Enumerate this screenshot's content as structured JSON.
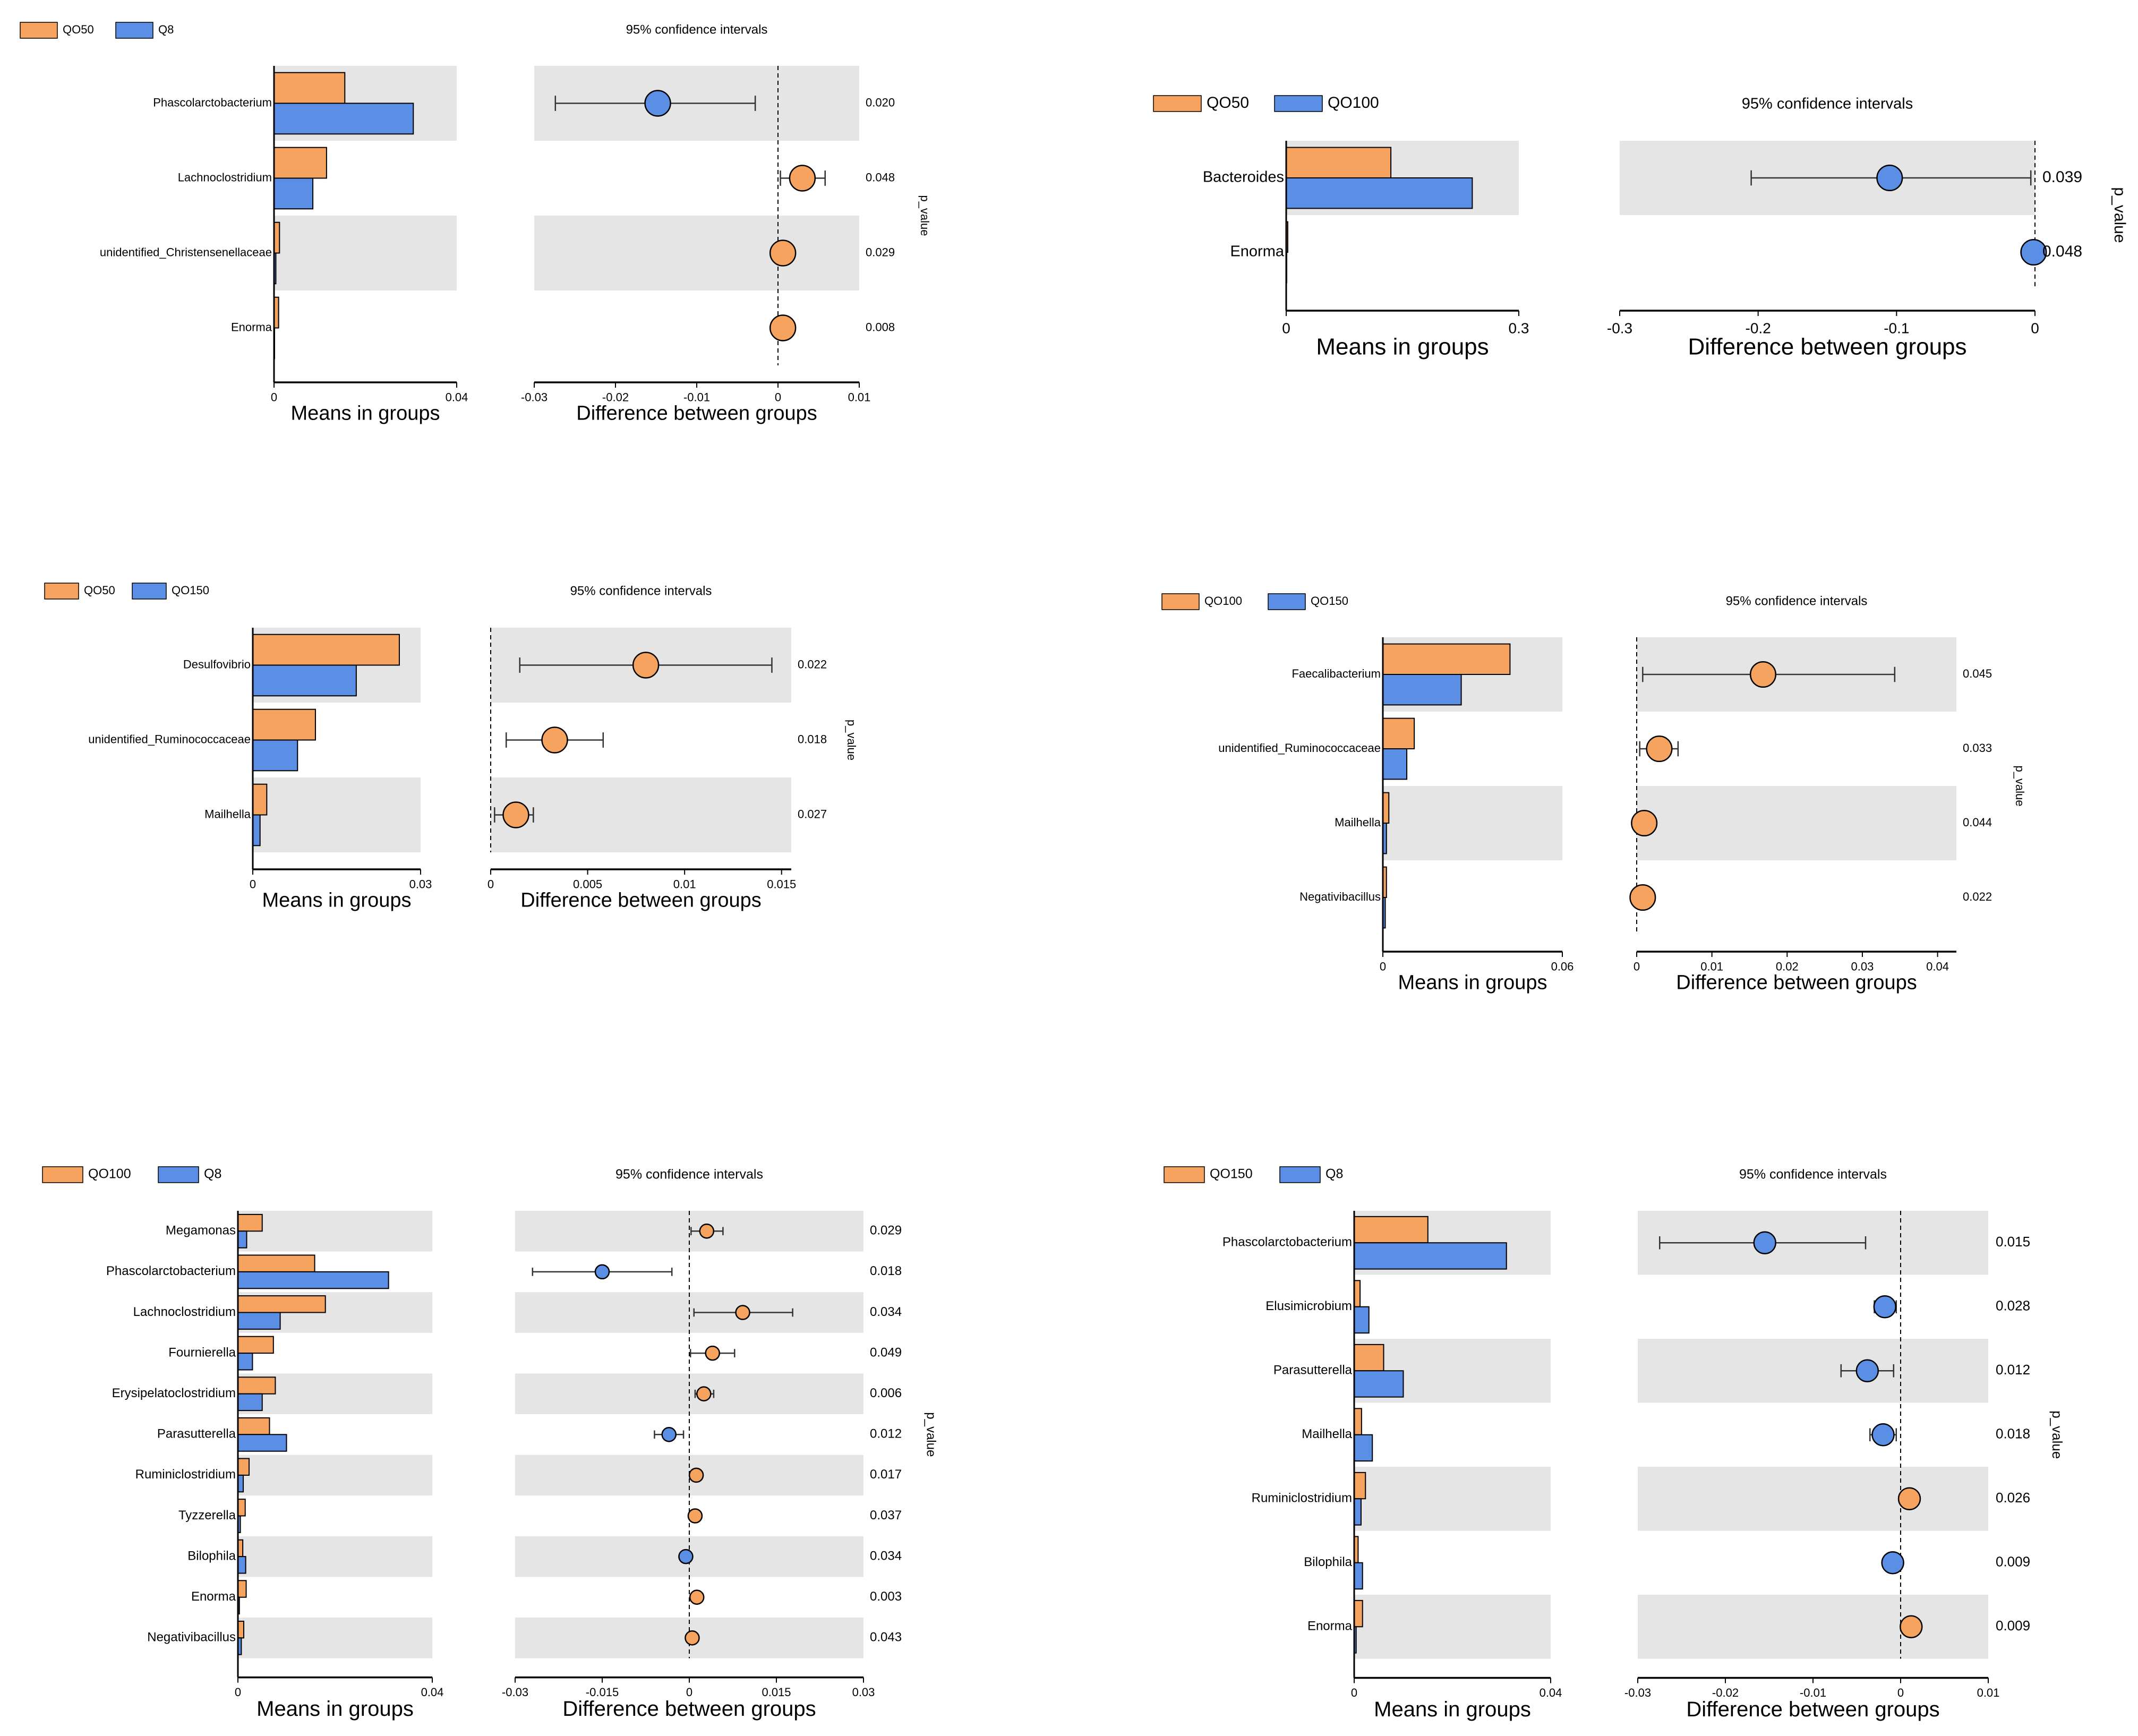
{
  "colors": {
    "group_a": "#f5a35e",
    "group_b": "#5b8fe6",
    "shade": "#e5e5e5",
    "axis": "#000000",
    "errbar": "#333333"
  },
  "chart_data": [
    {
      "type": "extended_error_bar",
      "legend": [
        "QO50",
        "Q8"
      ],
      "ci_title": "95% confidence intervals",
      "xlabel_left": "Means in groups",
      "xlabel_right": "Difference between groups",
      "pvalue_label": "p_value",
      "left_ticks": [
        "0",
        "0.04"
      ],
      "right_ticks": [
        "-0.03",
        "-0.02",
        "-0.01",
        "0",
        "0.01"
      ],
      "mean_xlim": [
        0,
        0.04
      ],
      "diff_xlim": [
        -0.03,
        0.01
      ],
      "rows": [
        {
          "label": "Phascolarctobacterium",
          "mean_a": 0.0155,
          "mean_b": 0.0305,
          "diff": -0.0148,
          "ci": [
            -0.0274,
            -0.0028
          ],
          "p": "0.020",
          "color": "b"
        },
        {
          "label": "Lachnoclostridium",
          "mean_a": 0.0115,
          "mean_b": 0.0085,
          "diff": 0.003,
          "ci": [
            0.0003,
            0.0058
          ],
          "p": "0.048",
          "color": "a"
        },
        {
          "label": "unidentified_Christensenellaceae",
          "mean_a": 0.0012,
          "mean_b": 0.0004,
          "diff": 0.0006,
          "ci": [
            0.0001,
            0.0014
          ],
          "p": "0.029",
          "color": "a"
        },
        {
          "label": "Enorma",
          "mean_a": 0.001,
          "mean_b": 0.0001,
          "diff": 0.0006,
          "ci": [
            0.0001,
            0.0013
          ],
          "p": "0.008",
          "color": "a"
        }
      ]
    },
    {
      "type": "extended_error_bar",
      "legend": [
        "QO50",
        "QO100"
      ],
      "ci_title": "95% confidence intervals",
      "xlabel_left": "Means in groups",
      "xlabel_right": "Difference between groups",
      "pvalue_label": "p_value",
      "left_ticks": [
        "0",
        "0.3"
      ],
      "right_ticks": [
        "-0.3",
        "-0.2",
        "-0.1",
        "0"
      ],
      "mean_xlim": [
        0,
        0.3
      ],
      "diff_xlim": [
        -0.3,
        0.0
      ],
      "rows": [
        {
          "label": "Bacteroides",
          "mean_a": 0.135,
          "mean_b": 0.24,
          "diff": -0.105,
          "ci": [
            -0.205,
            -0.003
          ],
          "p": "0.039",
          "color": "b"
        },
        {
          "label": "Enorma",
          "mean_a": 0.002,
          "mean_b": 0.0003,
          "diff": -0.001,
          "ci": [
            -0.002,
            -0.0002
          ],
          "p": "0.048",
          "color": "b"
        }
      ]
    },
    {
      "type": "extended_error_bar",
      "legend": [
        "QO50",
        "QO150"
      ],
      "ci_title": "95% confidence intervals",
      "xlabel_left": "Means in groups",
      "xlabel_right": "Difference between groups",
      "pvalue_label": "p_value",
      "left_ticks": [
        "0",
        "0.03"
      ],
      "right_ticks": [
        "0",
        "0.005",
        "0.01",
        "0.015"
      ],
      "mean_xlim": [
        0,
        0.03
      ],
      "diff_xlim": [
        0,
        0.0155
      ],
      "rows": [
        {
          "label": "Desulfovibrio",
          "mean_a": 0.0262,
          "mean_b": 0.0185,
          "diff": 0.008,
          "ci": [
            0.0015,
            0.0145
          ],
          "p": "0.022",
          "color": "a"
        },
        {
          "label": "unidentified_Ruminococcaceae",
          "mean_a": 0.0112,
          "mean_b": 0.008,
          "diff": 0.0033,
          "ci": [
            0.0008,
            0.0058
          ],
          "p": "0.018",
          "color": "a"
        },
        {
          "label": "Mailhella",
          "mean_a": 0.0025,
          "mean_b": 0.0013,
          "diff": 0.0013,
          "ci": [
            0.0002,
            0.0022
          ],
          "p": "0.027",
          "color": "a"
        }
      ]
    },
    {
      "type": "extended_error_bar",
      "legend": [
        "QO100",
        "QO150"
      ],
      "ci_title": "95% confidence intervals",
      "xlabel_left": "Means in groups",
      "xlabel_right": "Difference between groups",
      "pvalue_label": "p_value",
      "left_ticks": [
        "0",
        "0.06"
      ],
      "right_ticks": [
        "0",
        "0.01",
        "0.02",
        "0.03",
        "0.04"
      ],
      "mean_xlim": [
        0,
        0.06
      ],
      "diff_xlim": [
        0,
        0.0425
      ],
      "rows": [
        {
          "label": "Faecalibacterium",
          "mean_a": 0.0425,
          "mean_b": 0.0262,
          "diff": 0.0168,
          "ci": [
            0.0008,
            0.0343
          ],
          "p": "0.045",
          "color": "a"
        },
        {
          "label": "unidentified_Ruminococcaceae",
          "mean_a": 0.0105,
          "mean_b": 0.008,
          "diff": 0.003,
          "ci": [
            0.0004,
            0.0055
          ],
          "p": "0.033",
          "color": "a"
        },
        {
          "label": "Mailhella",
          "mean_a": 0.002,
          "mean_b": 0.0012,
          "diff": 0.001,
          "ci": [
            0.0002,
            0.0019
          ],
          "p": "0.044",
          "color": "a"
        },
        {
          "label": "Negativibacillus",
          "mean_a": 0.0012,
          "mean_b": 0.0008,
          "diff": 0.0008,
          "ci": [
            0.0001,
            0.0016
          ],
          "p": "0.022",
          "color": "a"
        }
      ]
    },
    {
      "type": "extended_error_bar",
      "legend": [
        "QO100",
        "Q8"
      ],
      "ci_title": "95% confidence intervals",
      "xlabel_left": "Means in groups",
      "xlabel_right": "Difference between groups",
      "pvalue_label": "p_value",
      "left_ticks": [
        "0",
        "0.04"
      ],
      "right_ticks": [
        "-0.03",
        "-0.015",
        "0",
        "0.015",
        "0.03"
      ],
      "mean_xlim": [
        0,
        0.04
      ],
      "diff_xlim": [
        -0.03,
        0.03
      ],
      "rows": [
        {
          "label": "Megamonas",
          "mean_a": 0.005,
          "mean_b": 0.0018,
          "diff": 0.003,
          "ci": [
            0.0003,
            0.0058
          ],
          "p": "0.029",
          "color": "a"
        },
        {
          "label": "Phascolarctobacterium",
          "mean_a": 0.0158,
          "mean_b": 0.031,
          "diff": -0.015,
          "ci": [
            -0.027,
            -0.003
          ],
          "p": "0.018",
          "color": "b"
        },
        {
          "label": "Lachnoclostridium",
          "mean_a": 0.018,
          "mean_b": 0.0087,
          "diff": 0.0092,
          "ci": [
            0.0008,
            0.0178
          ],
          "p": "0.034",
          "color": "a"
        },
        {
          "label": "Fournierella",
          "mean_a": 0.0073,
          "mean_b": 0.003,
          "diff": 0.004,
          "ci": [
            0.0002,
            0.0078
          ],
          "p": "0.049",
          "color": "a"
        },
        {
          "label": "Erysipelatoclostridium",
          "mean_a": 0.0077,
          "mean_b": 0.005,
          "diff": 0.0025,
          "ci": [
            0.001,
            0.0042
          ],
          "p": "0.006",
          "color": "a"
        },
        {
          "label": "Parasutterella",
          "mean_a": 0.0065,
          "mean_b": 0.01,
          "diff": -0.0035,
          "ci": [
            -0.006,
            -0.001
          ],
          "p": "0.012",
          "color": "b"
        },
        {
          "label": "Ruminiclostridium",
          "mean_a": 0.0023,
          "mean_b": 0.0011,
          "diff": 0.0012,
          "ci": [
            0.0003,
            0.0021
          ],
          "p": "0.017",
          "color": "a"
        },
        {
          "label": "Tyzzerella",
          "mean_a": 0.0015,
          "mean_b": 0.0005,
          "diff": 0.001,
          "ci": [
            0.0002,
            0.0018
          ],
          "p": "0.037",
          "color": "a"
        },
        {
          "label": "Bilophila",
          "mean_a": 0.001,
          "mean_b": 0.0016,
          "diff": -0.0006,
          "ci": [
            -0.0012,
            -0.0001
          ],
          "p": "0.034",
          "color": "b"
        },
        {
          "label": "Enorma",
          "mean_a": 0.0017,
          "mean_b": 0.0003,
          "diff": 0.0013,
          "ci": [
            0.0003,
            0.0023
          ],
          "p": "0.003",
          "color": "a"
        },
        {
          "label": "Negativibacillus",
          "mean_a": 0.0012,
          "mean_b": 0.0007,
          "diff": 0.0005,
          "ci": [
            0.0001,
            0.0011
          ],
          "p": "0.043",
          "color": "a"
        }
      ]
    },
    {
      "type": "extended_error_bar",
      "legend": [
        "QO150",
        "Q8"
      ],
      "ci_title": "95% confidence intervals",
      "xlabel_left": "Means in groups",
      "xlabel_right": "Difference between groups",
      "pvalue_label": "p_value",
      "left_ticks": [
        "0",
        "0.04"
      ],
      "right_ticks": [
        "-0.03",
        "-0.02",
        "-0.01",
        "0",
        "0.01"
      ],
      "mean_xlim": [
        0,
        0.04
      ],
      "diff_xlim": [
        -0.03,
        0.01
      ],
      "rows": [
        {
          "label": "Phascolarctobacterium",
          "mean_a": 0.015,
          "mean_b": 0.031,
          "diff": -0.0155,
          "ci": [
            -0.0275,
            -0.004
          ],
          "p": "0.015",
          "color": "b"
        },
        {
          "label": "Elusimicrobium",
          "mean_a": 0.0012,
          "mean_b": 0.003,
          "diff": -0.0018,
          "ci": [
            -0.003,
            -0.0005
          ],
          "p": "0.028",
          "color": "b"
        },
        {
          "label": "Parasutterella",
          "mean_a": 0.006,
          "mean_b": 0.01,
          "diff": -0.0038,
          "ci": [
            -0.0068,
            -0.0008
          ],
          "p": "0.012",
          "color": "b"
        },
        {
          "label": "Mailhella",
          "mean_a": 0.0015,
          "mean_b": 0.0037,
          "diff": -0.002,
          "ci": [
            -0.0035,
            -0.0005
          ],
          "p": "0.018",
          "color": "b"
        },
        {
          "label": "Ruminiclostridium",
          "mean_a": 0.0023,
          "mean_b": 0.0014,
          "diff": 0.001,
          "ci": [
            0.0003,
            0.0018
          ],
          "p": "0.026",
          "color": "a"
        },
        {
          "label": "Bilophila",
          "mean_a": 0.0008,
          "mean_b": 0.0017,
          "diff": -0.0009,
          "ci": [
            -0.0015,
            -0.0002
          ],
          "p": "0.009",
          "color": "b"
        },
        {
          "label": "Enorma",
          "mean_a": 0.0017,
          "mean_b": 0.0004,
          "diff": 0.0012,
          "ci": [
            0.0003,
            0.0021
          ],
          "p": "0.009",
          "color": "a"
        }
      ]
    }
  ]
}
